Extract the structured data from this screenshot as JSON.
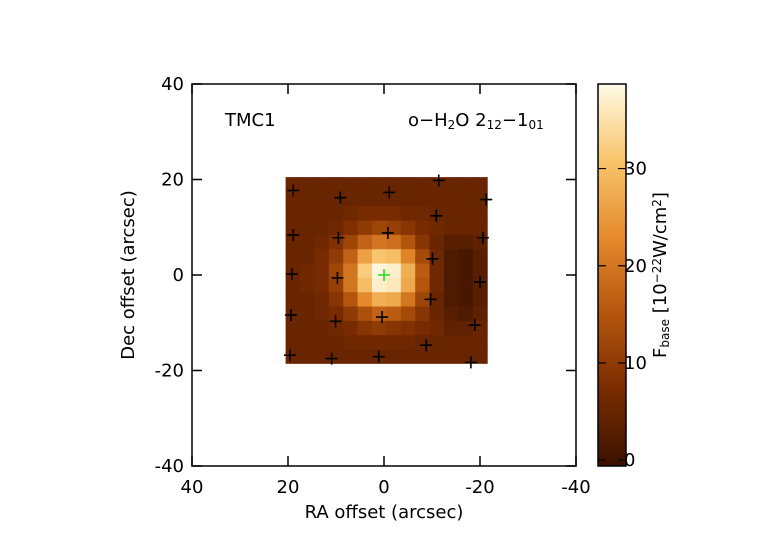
{
  "chart_data": {
    "type": "heatmap",
    "annotations": {
      "source": [
        {
          "t": "TMC1"
        }
      ],
      "line": [
        {
          "t": "o−H"
        },
        {
          "t": "2",
          "shift": "sub"
        },
        {
          "t": "O 2"
        },
        {
          "t": "12",
          "shift": "sub"
        },
        {
          "t": "−1"
        },
        {
          "t": "01",
          "shift": "sub"
        }
      ]
    },
    "xlabel": "RA offset (arcsec)",
    "ylabel": "Dec offset (arcsec)",
    "xlim": [
      40,
      -40
    ],
    "ylim": [
      -40,
      40
    ],
    "xticks": [
      40,
      20,
      0,
      -20,
      -40
    ],
    "yticks": [
      -40,
      -20,
      0,
      20,
      40
    ],
    "x": [
      19,
      16,
      13,
      10,
      7,
      4,
      1,
      -2,
      -5,
      -8,
      -11,
      -14,
      -17,
      -20
    ],
    "y": [
      -17,
      -14,
      -11,
      -8,
      -5,
      -2,
      1,
      4,
      7,
      10,
      13,
      16,
      19
    ],
    "z": [
      [
        5,
        5,
        5,
        5,
        5,
        5,
        5,
        5,
        5,
        5,
        5,
        5,
        5,
        5
      ],
      [
        5,
        5,
        5,
        5,
        6,
        6,
        6,
        6,
        6,
        5,
        5,
        5,
        5,
        5
      ],
      [
        5,
        5,
        5,
        6,
        7,
        9,
        10,
        9,
        8,
        7,
        6,
        4,
        4,
        5
      ],
      [
        5,
        5,
        6,
        7,
        10,
        14,
        17,
        16,
        13,
        9,
        5,
        3,
        2,
        4
      ],
      [
        5,
        5,
        6,
        9,
        15,
        23,
        28,
        27,
        20,
        12,
        5,
        2,
        1,
        3
      ],
      [
        5,
        6,
        7,
        11,
        20,
        30,
        37,
        36,
        27,
        15,
        6,
        2,
        1,
        3
      ],
      [
        5,
        6,
        7,
        12,
        20,
        32,
        38,
        37,
        28,
        16,
        6,
        2,
        1,
        3
      ],
      [
        5,
        5,
        7,
        10,
        17,
        26,
        31,
        30,
        22,
        13,
        6,
        2,
        1,
        3
      ],
      [
        5,
        5,
        6,
        8,
        12,
        17,
        20,
        19,
        15,
        9,
        5,
        3,
        3,
        4
      ],
      [
        5,
        5,
        5,
        6,
        8,
        10,
        12,
        11,
        9,
        7,
        6,
        5,
        5,
        5
      ],
      [
        5,
        5,
        5,
        5,
        6,
        7,
        7,
        7,
        6,
        6,
        5,
        5,
        5,
        5
      ],
      [
        5,
        5,
        5,
        5,
        5,
        5,
        5,
        5,
        5,
        5,
        5,
        5,
        5,
        5
      ],
      [
        5,
        5,
        5,
        5,
        5,
        5,
        5,
        5,
        5,
        5,
        5,
        5,
        5,
        5
      ]
    ],
    "zlim": [
      -0.6,
      38.7
    ],
    "colormap": [
      "#3a1200",
      "#7a2c00",
      "#b5560e",
      "#e68a2e",
      "#f8c46a",
      "#fffbe6"
    ],
    "colorbar": {
      "ticks": [
        0,
        10,
        20,
        30
      ],
      "label": [
        {
          "t": "F"
        },
        {
          "t": "base",
          "shift": "sub"
        },
        {
          "t": " [10"
        },
        {
          "t": "−22",
          "shift": "sup"
        },
        {
          "t": "W/cm"
        },
        {
          "t": "2",
          "shift": "sup"
        },
        {
          "t": "]"
        }
      ]
    },
    "markers": {
      "color": "#000000",
      "x": [
        18.9,
        9.1,
        -1.1,
        -11.4,
        -21.3,
        18.9,
        9.5,
        -0.8,
        -10.9,
        -20.6,
        19.2,
        9.7,
        -10.1,
        -20,
        19.4,
        10.1,
        0.4,
        -9.7,
        -18.9,
        19.6,
        10.9,
        1.1,
        -8.8,
        -18.1
      ],
      "y": [
        17.7,
        16.2,
        17.3,
        19.8,
        15.8,
        8.4,
        7.8,
        8.8,
        12.4,
        7.8,
        0.2,
        -0.6,
        3.4,
        -1.5,
        -8.4,
        -9.7,
        -8.8,
        -5.1,
        -10.5,
        -16.8,
        -17.5,
        -17.1,
        -14.7,
        -18.3
      ]
    },
    "center_marker": {
      "color": "#22dd22",
      "x": [
        0
      ],
      "y": [
        0
      ]
    }
  }
}
